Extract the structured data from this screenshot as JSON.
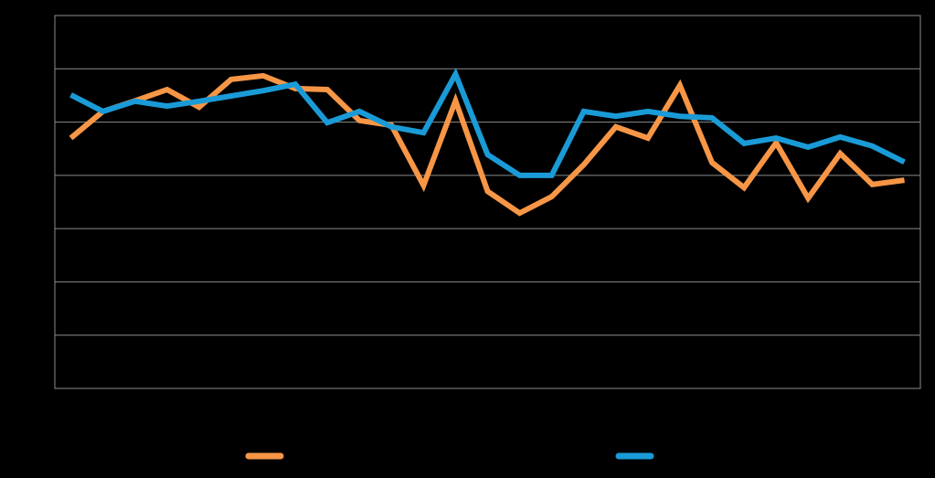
{
  "chart_data": {
    "type": "line",
    "categories": [
      null,
      null,
      null,
      null,
      null,
      null,
      null,
      null,
      null,
      null,
      null,
      null,
      null,
      null,
      null,
      null,
      null,
      null,
      null,
      null,
      null,
      null,
      null,
      null,
      null,
      null,
      null
    ],
    "series": [
      {
        "color": "#f79646",
        "values": [
          4.7,
          5.2,
          5.4,
          5.61,
          5.28,
          5.8,
          5.87,
          5.63,
          5.61,
          5.03,
          4.94,
          3.81,
          5.4,
          3.7,
          3.29,
          3.6,
          4.2,
          4.91,
          4.7,
          5.69,
          4.24,
          3.77,
          4.61,
          3.57,
          4.41,
          3.83,
          3.91
        ]
      },
      {
        "color": "#1a9bd7",
        "values": [
          5.51,
          5.2,
          5.39,
          5.3,
          5.39,
          5.49,
          5.59,
          5.71,
          4.99,
          5.2,
          4.91,
          4.8,
          5.9,
          4.39,
          4.0,
          4.0,
          5.2,
          5.11,
          5.2,
          5.11,
          5.08,
          4.6,
          4.7,
          4.53,
          4.72,
          4.55,
          4.25
        ]
      }
    ],
    "ylim": [
      0,
      7
    ],
    "yticks": [
      0,
      1,
      2,
      3,
      4,
      5,
      6,
      7
    ],
    "grid": true,
    "legend": "bottom"
  }
}
